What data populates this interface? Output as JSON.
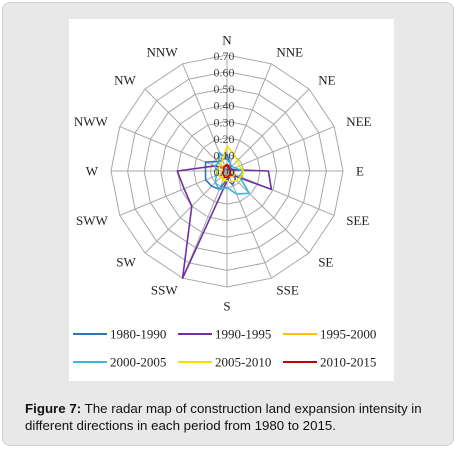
{
  "caption": {
    "label": "Figure 7:",
    "text": " The radar map of construction land expansion intensity in different directions in each period from 1980 to 2015."
  },
  "colors": {
    "card_bg": "#e8e8e8",
    "grid": "#a8a8a8"
  },
  "chart_data": {
    "type": "radar",
    "directions": [
      "N",
      "NNE",
      "NE",
      "NEE",
      "E",
      "SEE",
      "SE",
      "SSE",
      "S",
      "SSW",
      "SW",
      "SWW",
      "W",
      "NWW",
      "NW",
      "NNW"
    ],
    "rlim": [
      0,
      0.7
    ],
    "ticks": [
      0.0,
      0.1,
      0.2,
      0.3,
      0.4,
      0.5,
      0.6,
      0.7
    ],
    "tick_labels": [
      "0.00",
      "0.10",
      "0.20",
      "0.30",
      "0.40",
      "0.50",
      "0.60",
      "0.70"
    ],
    "grid": true,
    "legend_position": "bottom",
    "series": [
      {
        "name": "1980-1990",
        "color": "#2e75b6",
        "values": [
          0.1,
          0.05,
          0.03,
          0.03,
          0.04,
          0.05,
          0.07,
          0.09,
          0.05,
          0.12,
          0.13,
          0.14,
          0.13,
          0.14,
          0.08,
          0.07
        ]
      },
      {
        "name": "1990-1995",
        "color": "#7030a0",
        "values": [
          0.03,
          0.02,
          0.01,
          0.02,
          0.25,
          0.29,
          0.03,
          0.04,
          0.06,
          0.7,
          0.3,
          0.28,
          0.3,
          0.08,
          0.03,
          0.03
        ]
      },
      {
        "name": "1995-2000",
        "color": "#ffc000",
        "values": [
          0.04,
          0.03,
          0.02,
          0.02,
          0.02,
          0.05,
          0.05,
          0.03,
          0.03,
          0.05,
          0.05,
          0.03,
          0.03,
          0.03,
          0.04,
          0.04
        ]
      },
      {
        "name": "2000-2005",
        "color": "#33b8d8",
        "values": [
          0.07,
          0.05,
          0.04,
          0.05,
          0.1,
          0.08,
          0.19,
          0.15,
          0.1,
          0.12,
          0.1,
          0.07,
          0.06,
          0.08,
          0.07,
          0.12
        ]
      },
      {
        "name": "2005-2010",
        "color": "#f5e000",
        "values": [
          0.15,
          0.11,
          0.09,
          0.08,
          0.1,
          0.09,
          0.08,
          0.07,
          0.06,
          0.06,
          0.05,
          0.06,
          0.06,
          0.05,
          0.06,
          0.07
        ]
      },
      {
        "name": "2010-2015",
        "color": "#c0000b",
        "values": [
          0.04,
          0.03,
          0.02,
          0.02,
          0.02,
          0.02,
          0.03,
          0.03,
          0.04,
          0.04,
          0.03,
          0.03,
          0.02,
          0.02,
          0.03,
          0.03
        ]
      }
    ]
  }
}
